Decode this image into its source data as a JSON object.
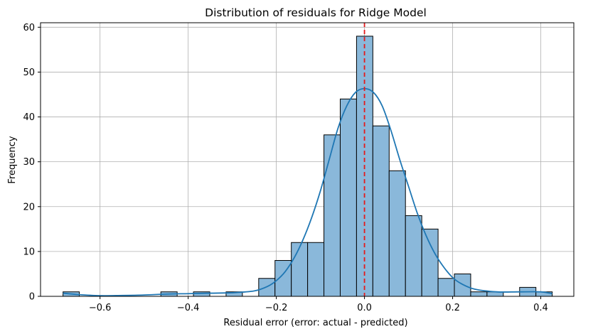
{
  "chart_data": {
    "type": "bar",
    "title": "Distribution of residuals for Ridge Model",
    "xlabel": "Residual error (error: actual - predicted)",
    "ylabel": "Frequency",
    "xlim": [
      -0.735,
      0.475
    ],
    "ylim": [
      0,
      61
    ],
    "grid": true,
    "x_ticks": [
      -0.6,
      -0.4,
      -0.2,
      0.0,
      0.2,
      0.4
    ],
    "x_tick_labels": [
      "−0.6",
      "−0.4",
      "−0.2",
      "0.0",
      "0.2",
      "0.4"
    ],
    "y_ticks": [
      0,
      10,
      20,
      30,
      40,
      50,
      60
    ],
    "y_tick_labels": [
      "0",
      "10",
      "20",
      "30",
      "40",
      "50",
      "60"
    ],
    "bin_edges": [
      -0.684,
      -0.647,
      -0.61,
      -0.573,
      -0.536,
      -0.499,
      -0.462,
      -0.425,
      -0.388,
      -0.351,
      -0.314,
      -0.277,
      -0.24,
      -0.203,
      -0.166,
      -0.129,
      -0.092,
      -0.055,
      -0.018,
      0.019,
      0.056,
      0.093,
      0.13,
      0.167,
      0.204,
      0.241,
      0.278,
      0.315,
      0.352,
      0.389,
      0.426
    ],
    "counts": [
      1,
      0,
      0,
      0,
      0,
      0,
      1,
      0,
      1,
      0,
      1,
      0,
      4,
      8,
      12,
      12,
      36,
      44,
      58,
      38,
      28,
      18,
      15,
      4,
      5,
      1,
      1,
      0,
      2,
      1
    ],
    "kde": {
      "x": [
        -0.684,
        -0.65,
        -0.6,
        -0.55,
        -0.5,
        -0.45,
        -0.4,
        -0.35,
        -0.3,
        -0.25,
        -0.22,
        -0.2,
        -0.18,
        -0.16,
        -0.14,
        -0.12,
        -0.1,
        -0.08,
        -0.06,
        -0.04,
        -0.02,
        0.0,
        0.02,
        0.04,
        0.06,
        0.08,
        0.1,
        0.12,
        0.14,
        0.16,
        0.18,
        0.2,
        0.22,
        0.25,
        0.3,
        0.35,
        0.4,
        0.426
      ],
      "y": [
        0.7,
        0.4,
        0.15,
        0.2,
        0.3,
        0.5,
        0.6,
        0.7,
        0.8,
        1.2,
        2.2,
        3.5,
        5.5,
        8.5,
        12.5,
        17.5,
        23.5,
        30.5,
        37.5,
        42.5,
        45.5,
        46.3,
        45.5,
        42.5,
        37.0,
        30.5,
        24.5,
        18.5,
        13.5,
        9.5,
        6.5,
        4.2,
        2.8,
        1.6,
        1.0,
        1.0,
        1.0,
        0.6
      ]
    },
    "zero_line_x": 0.0,
    "colors": {
      "bar_fill": "#8ab8da",
      "bar_edge": "#000000",
      "kde_line": "#1f77b4",
      "zero_line": "#e41a1c",
      "grid": "#b0b0b0"
    }
  }
}
